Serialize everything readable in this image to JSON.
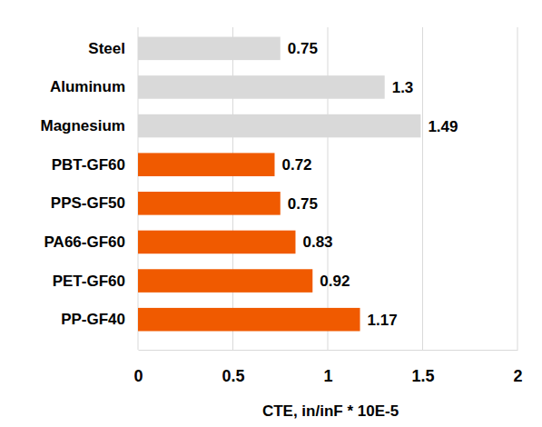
{
  "chart_data": {
    "type": "bar",
    "orientation": "horizontal",
    "categories": [
      "Steel",
      "Aluminum",
      "Magnesium",
      "PBT-GF60",
      "PPS-GF50",
      "PA66-GF60",
      "PET-GF60",
      "PP-GF40"
    ],
    "values": [
      0.75,
      1.3,
      1.49,
      0.72,
      0.75,
      0.83,
      0.92,
      1.17
    ],
    "colors": [
      "#d9d9d9",
      "#d9d9d9",
      "#d9d9d9",
      "#f05a00",
      "#f05a00",
      "#f05a00",
      "#f05a00",
      "#f05a00"
    ],
    "x_label": "CTE, in/inF * 10E-5",
    "xlim": [
      0,
      2
    ],
    "xticks": [
      0,
      0.5,
      1,
      1.5,
      2
    ],
    "grid": true,
    "data_labels": true
  }
}
